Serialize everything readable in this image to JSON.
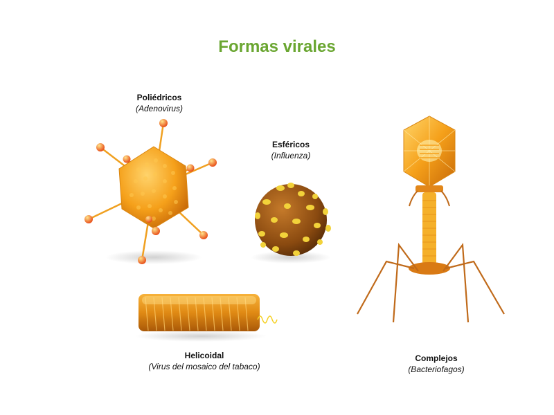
{
  "title": "Formas virales",
  "colors": {
    "title": "#6aa631",
    "capsid_orange": "#f5a01a",
    "spike_red": "#e8401c",
    "sphere_brown": "#8a4a10",
    "tail_fiber": "#c06a1a"
  },
  "viruses": [
    {
      "name": "Poliédricos",
      "example": "(Adenovirus)"
    },
    {
      "name": "Esféricos",
      "example": "(Influenza)"
    },
    {
      "name": "Helicoidal",
      "example": "(Virus del mosaico del tabaco)"
    },
    {
      "name": "Complejos",
      "example": "(Bacteriofagos)"
    }
  ]
}
